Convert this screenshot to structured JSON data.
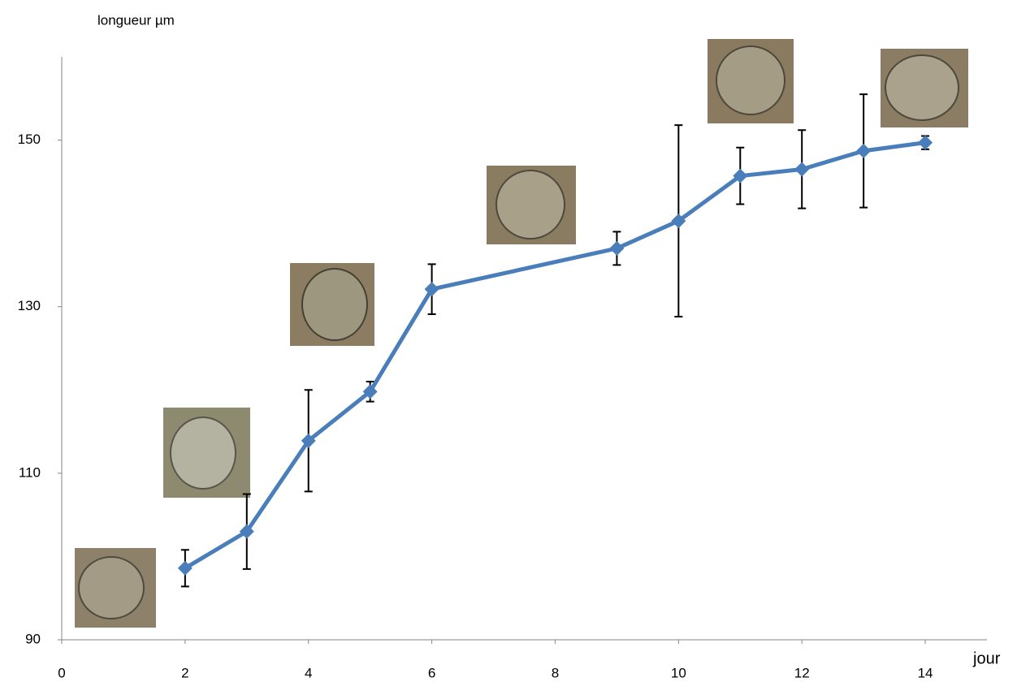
{
  "chart_data": {
    "type": "line",
    "y_label": "longueur µm",
    "x_label": "jour",
    "x": [
      2,
      3,
      4,
      5,
      6,
      9,
      10,
      11,
      12,
      13,
      14
    ],
    "series": [
      {
        "color": "#4a7ebb",
        "values": [
          98.6,
          103.0,
          113.9,
          119.8,
          132.1,
          137.0,
          140.3,
          145.7,
          146.5,
          148.7,
          149.7
        ],
        "errors": [
          2.2,
          4.5,
          6.1,
          1.2,
          3.0,
          2.0,
          11.5,
          3.4,
          4.7,
          6.8,
          0.8
        ]
      }
    ],
    "xlim": [
      0,
      15
    ],
    "xticks": [
      0,
      2,
      4,
      6,
      8,
      10,
      12,
      14
    ],
    "ylim": [
      90,
      160
    ],
    "yticks": [
      90,
      110,
      130,
      150
    ]
  }
}
